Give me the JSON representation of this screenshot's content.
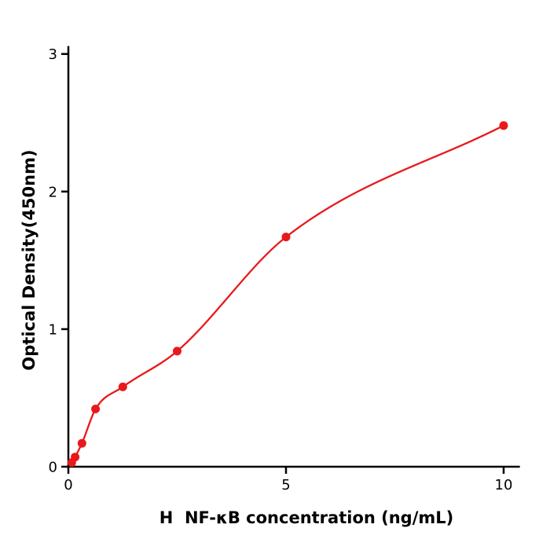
{
  "figure": {
    "background": "#ffffff"
  },
  "chart_data": {
    "type": "scatter",
    "title": "",
    "xlabel": "H  NF-κB concentration (ng/mL)",
    "ylabel": "Optical Density(450nm)",
    "x": [
      0.078,
      0.156,
      0.313,
      0.625,
      1.25,
      2.5,
      5,
      10
    ],
    "y": [
      0.03,
      0.07,
      0.17,
      0.42,
      0.58,
      0.84,
      1.67,
      2.48
    ],
    "has_fit_curve": true,
    "curve_style": "smooth saturation fit through points",
    "xlim": [
      0,
      10.35
    ],
    "ylim": [
      0,
      3.05
    ],
    "xticks": [
      0,
      5,
      10
    ],
    "xtick_labels": [
      "0",
      "5",
      "10"
    ],
    "yticks": [
      0,
      1,
      2,
      3
    ],
    "ytick_labels": [
      "0",
      "1",
      "2",
      "3"
    ],
    "grid": false,
    "legend": null,
    "point_color": "#e8191c",
    "line_color": "#e8191c",
    "axis_color": "#000000",
    "marker": "circle",
    "marker_radius_px": 5.5
  }
}
